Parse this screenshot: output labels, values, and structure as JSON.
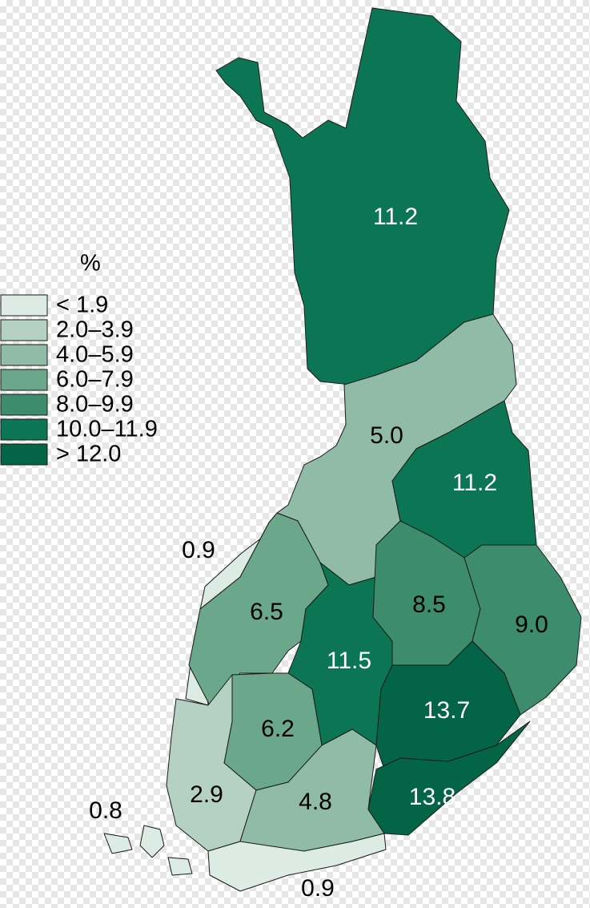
{
  "legend": {
    "title": "%",
    "classes": [
      {
        "label": "< 1.9",
        "color": "#dcebe4"
      },
      {
        "label": "2.0–3.9",
        "color": "#b5d1c3"
      },
      {
        "label": "4.0–5.9",
        "color": "#90bba6"
      },
      {
        "label": "6.0–7.9",
        "color": "#6aa78b"
      },
      {
        "label": "8.0–9.9",
        "color": "#3c8c6d"
      },
      {
        "label": "10.0–11.9",
        "color": "#0b7554"
      },
      {
        "label": "> 12.0",
        "color": "#046446"
      }
    ]
  },
  "regions": [
    {
      "label": "11.2",
      "color": "#0b7554"
    },
    {
      "label": "5.0",
      "color": "#90bba6"
    },
    {
      "label": "11.2",
      "color": "#0b7554"
    },
    {
      "label": "0.9",
      "color": "#dcebe4"
    },
    {
      "label": "6.5",
      "color": "#6aa78b"
    },
    {
      "label": "11.5",
      "color": "#0b7554"
    },
    {
      "label": "8.5",
      "color": "#3c8c6d"
    },
    {
      "label": "9.0",
      "color": "#3c8c6d"
    },
    {
      "label": "13.7",
      "color": "#046446"
    },
    {
      "label": "6.2",
      "color": "#6aa78b"
    },
    {
      "label": "2.9",
      "color": "#b5d1c3"
    },
    {
      "label": "4.8",
      "color": "#90bba6"
    },
    {
      "label": "13.8",
      "color": "#046446"
    },
    {
      "label": "0.8",
      "color": "#dcebe4"
    },
    {
      "label": "0.9",
      "color": "#dcebe4"
    }
  ]
}
